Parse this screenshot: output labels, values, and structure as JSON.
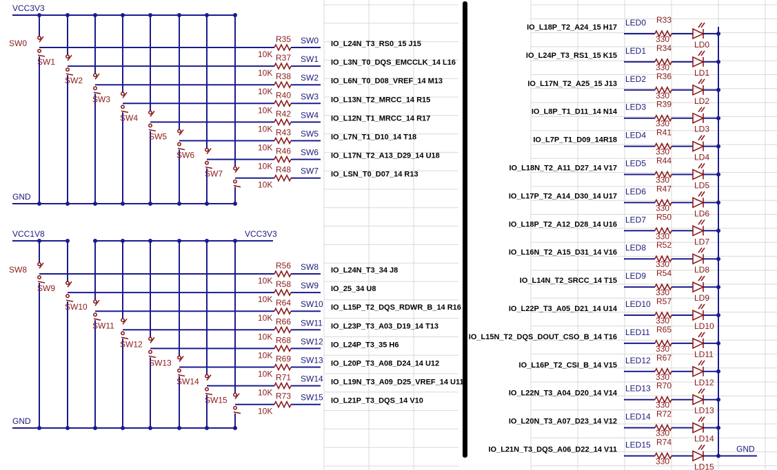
{
  "switch_block_1": {
    "vcc_label": "VCC3V3",
    "gnd_label": "GND",
    "rows": [
      {
        "sw": "SW0",
        "res": "R35",
        "val": "10K",
        "net": "SW0",
        "pin": "IO_L24N_T3_RS0_15 J15"
      },
      {
        "sw": "SW1",
        "res": "R37",
        "val": "10K",
        "net": "SW1",
        "pin": "IO_L3N_T0_DQS_EMCCLK_14 L16"
      },
      {
        "sw": "SW2",
        "res": "R38",
        "val": "10K",
        "net": "SW2",
        "pin": "IO_L6N_T0_D08_VREF_14 M13"
      },
      {
        "sw": "SW3",
        "res": "R40",
        "val": "10K",
        "net": "SW3",
        "pin": "IO_L13N_T2_MRCC_14  R15"
      },
      {
        "sw": "SW4",
        "res": "R42",
        "val": "10K",
        "net": "SW4",
        "pin": "IO_L12N_T1_MRCC_14 R17"
      },
      {
        "sw": "SW5",
        "res": "R43",
        "val": "10K",
        "net": "SW5",
        "pin": "IO_L7N_T1_D10_14 T18"
      },
      {
        "sw": "SW6",
        "res": "R46",
        "val": "10K",
        "net": "SW6",
        "pin": "IO_L17N_T2_A13_D29_14 U18"
      },
      {
        "sw": "SW7",
        "res": "R48",
        "val": "10K",
        "net": "SW7",
        "pin": "IO_LSN_T0_D07_14 R13"
      }
    ]
  },
  "switch_block_2": {
    "vcc_left_label": "VCC1V8",
    "vcc_right_label": "VCC3V3",
    "gnd_label": "GND",
    "rows": [
      {
        "sw": "SW8",
        "res": "R56",
        "val": "10K",
        "net": "SW8",
        "pin": "IO_L24N_T3_34 J8"
      },
      {
        "sw": "SW9",
        "res": "R58",
        "val": "10K",
        "net": "SW9",
        "pin": "IO_25_34 U8"
      },
      {
        "sw": "SW10",
        "res": "R64",
        "val": "10K",
        "net": "SW10",
        "pin": "IO_L15P_T2_DQS_RDWR_B_14 R16"
      },
      {
        "sw": "SW11",
        "res": "R66",
        "val": "10K",
        "net": "SW11",
        "pin": "IO_L23P_T3_A03_D19_14 T13"
      },
      {
        "sw": "SW12",
        "res": "R68",
        "val": "10K",
        "net": "SW12",
        "pin": "IO_L24P_T3_35 H6"
      },
      {
        "sw": "SW13",
        "res": "R69",
        "val": "10K",
        "net": "SW13",
        "pin": "IO_L20P_T3_A08_D24_14 U12"
      },
      {
        "sw": "SW14",
        "res": "R71",
        "val": "10K",
        "net": "SW14",
        "pin": "IO_L19N_T3_A09_D25_VREF_14 U11"
      },
      {
        "sw": "SW15",
        "res": "R73",
        "val": "10K",
        "net": "SW15",
        "pin": "IO_L21P_T3_DQS_14 V10"
      }
    ]
  },
  "led_block": {
    "gnd_label": "GND",
    "rows": [
      {
        "pin": "IO_L18P_T2_A24_15 H17",
        "net": "LED0",
        "res": "R33",
        "val": "330",
        "led": "LD0"
      },
      {
        "pin": "IO_L24P_T3_RS1_15 K15",
        "net": "LED1",
        "res": "R34",
        "val": "330",
        "led": "LD1"
      },
      {
        "pin": "IO_L17N_T2_A25_15 J13",
        "net": "LED2",
        "res": "R36",
        "val": "330",
        "led": "LD2"
      },
      {
        "pin": "IO_L8P_T1_D11_14 N14",
        "net": "LED3",
        "res": "R39",
        "val": "330",
        "led": "LD3"
      },
      {
        "pin": "IO_L7P_T1_D09_14R18",
        "net": "LED4",
        "res": "R41",
        "val": "330",
        "led": "LD4"
      },
      {
        "pin": "IO_L18N_T2_A11_D27_14 V17",
        "net": "LED5",
        "res": "R44",
        "val": "330",
        "led": "LD5"
      },
      {
        "pin": "IO_L17P_T2_A14_D30_14 U17",
        "net": "LED6",
        "res": "R47",
        "val": "330",
        "led": "LD6"
      },
      {
        "pin": "IO_L18P_T2_A12_D28_14 U16",
        "net": "LED7",
        "res": "R50",
        "val": "330",
        "led": "LD7"
      },
      {
        "pin": "IO_L16N_T2_A15_D31_14 V16",
        "net": "LED8",
        "res": "R52",
        "val": "330",
        "led": "LD8"
      },
      {
        "pin": "IO_L14N_T2_SRCC_14 T15",
        "net": "LED9",
        "res": "R54",
        "val": "330",
        "led": "LD9"
      },
      {
        "pin": "IO_L22P_T3_A05_D21_14 U14",
        "net": "LED10",
        "res": "R57",
        "val": "330",
        "led": "LD10"
      },
      {
        "pin": "IO_L15N_T2_DQS_DOUT_CSO_B_14 T16",
        "net": "LED11",
        "res": "R65",
        "val": "330",
        "led": "LD11"
      },
      {
        "pin": "IO_L16P_T2_CSI_B_14 V15",
        "net": "LED12",
        "res": "R67",
        "val": "330",
        "led": "LD12"
      },
      {
        "pin": "IO_L22N_T3_A04_D20_14 V14",
        "net": "LED13",
        "res": "R70",
        "val": "330",
        "led": "LD13"
      },
      {
        "pin": "IO_L20N_T3_A07_D23_14 V12",
        "net": "LED14",
        "res": "R72",
        "val": "330",
        "led": "LD14"
      },
      {
        "pin": "IO_L21N_T3_DQS_A06_D22_14 V11",
        "net": "LED15",
        "res": "R74",
        "val": "330",
        "led": "LD15"
      }
    ]
  },
  "colors": {
    "wire": "#1a1a8c",
    "component": "#8b1a1a",
    "divider": "#000000"
  }
}
